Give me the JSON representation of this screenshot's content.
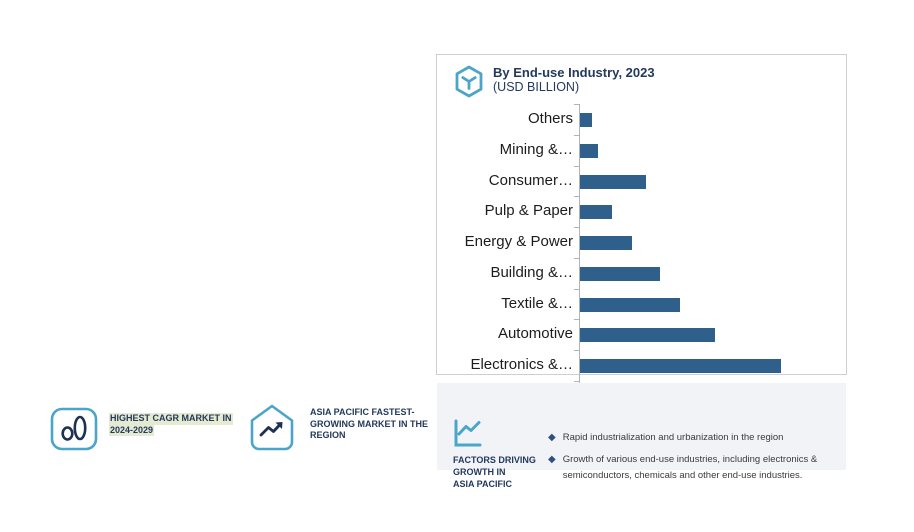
{
  "chart_card": {
    "title": "By End-use Industry, 2023",
    "subtitle": "(USD BILLION)",
    "icon": "hexagon-cube-icon"
  },
  "chart_data": {
    "type": "bar",
    "orientation": "horizontal",
    "title": "By End-use Industry, 2023",
    "subtitle": "(USD BILLION)",
    "categories": [
      "Others",
      "Mining &…",
      "Consumer…",
      "Pulp & Paper",
      "Energy & Power",
      "Building &…",
      "Textile &…",
      "Automotive",
      "Electronics &…"
    ],
    "values": [
      0.6,
      0.9,
      3.3,
      1.6,
      2.6,
      4.0,
      5.0,
      6.7,
      10.0
    ],
    "xlim": [
      0,
      13.3
    ],
    "xlabel": "",
    "ylabel": "",
    "grid": false,
    "legend": false,
    "bar_color": "#2f608c",
    "axis_color": "#b3b3b3"
  },
  "callouts": [
    {
      "icon": "bar-chart-icon",
      "lines": [
        "HIGHEST CAGR MARKET IN",
        "2024-2029"
      ],
      "highlighted": true,
      "highlight_color": "#e5ebd1"
    },
    {
      "icon": "growth-house-icon",
      "lines": [
        "ASIA PACIFIC FASTEST-",
        "GROWING MARKET IN THE",
        "REGION"
      ],
      "highlighted": false
    }
  ],
  "factors": {
    "icon": "line-chart-icon",
    "label_lines": [
      "FACTORS DRIVING",
      "GROWTH IN",
      "ASIA PACIFIC"
    ],
    "bullets": [
      "Rapid industrialization and urbanization in the region",
      "Growth of various end-use industries, including electronics & semiconductors, chemicals  and other end-use industries."
    ]
  },
  "colors": {
    "bar": "#2f608c",
    "teal": "#4ba5c8",
    "navy": "#23395d",
    "icon_inner_navy": "#1e3054",
    "highlight": "#e5ebd1",
    "panel": "#f1f3f7",
    "card_border": "#cfcfcf"
  }
}
